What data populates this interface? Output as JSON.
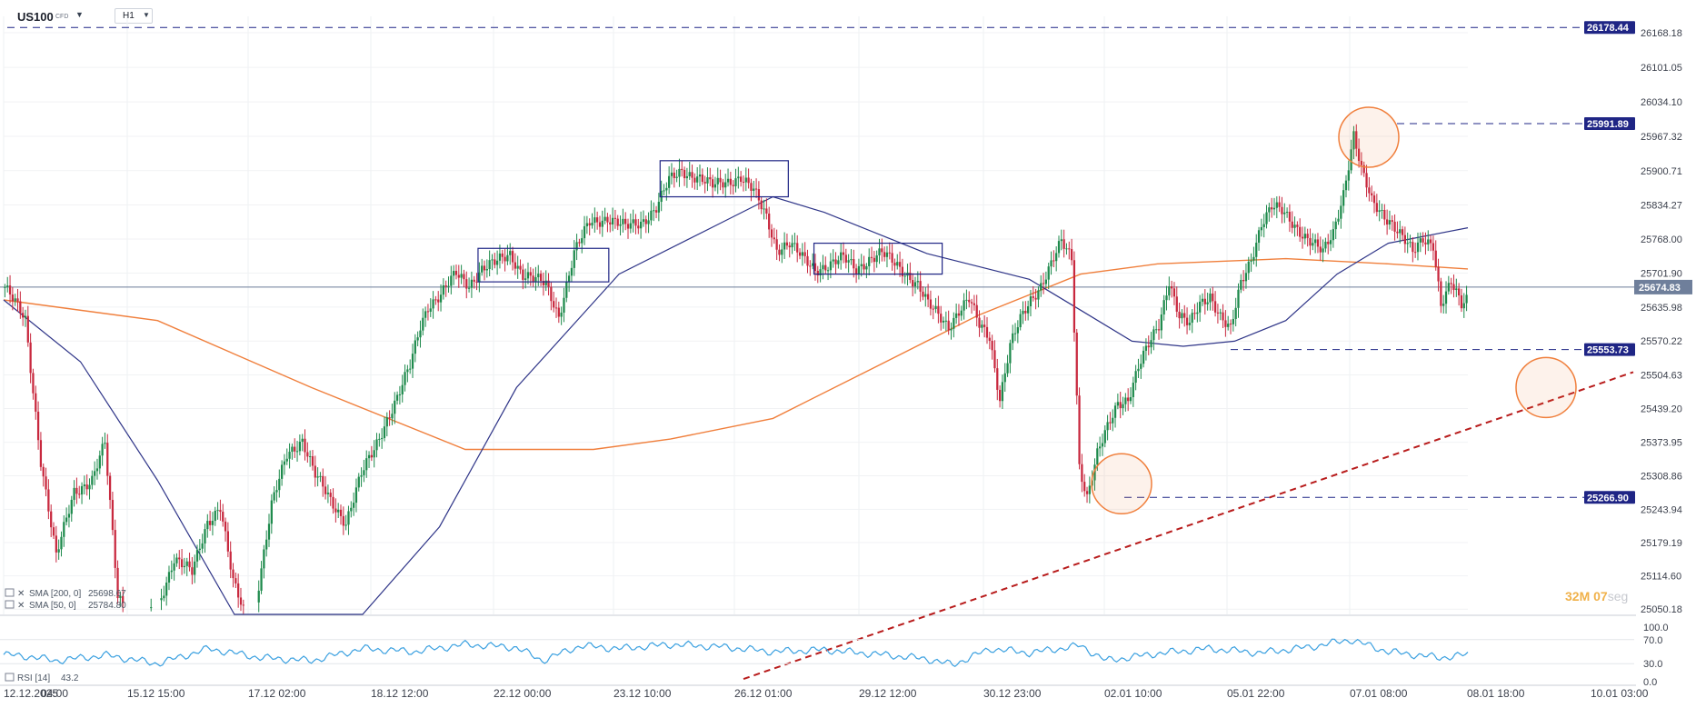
{
  "header": {
    "symbol": "US100",
    "symbol_type": "CFD",
    "timeframe": "H1"
  },
  "countdown": {
    "minutes": "32",
    "minutes_unit": "M",
    "seconds": "07",
    "seconds_unit": "seg"
  },
  "colors": {
    "bull": "#1e8a4c",
    "bear": "#c8283e",
    "sma200": "#f07f3c",
    "sma50": "#2f3588",
    "rsi": "#3aa0e0",
    "tag": "#1f2585",
    "trendline": "#b81c1c",
    "highlight": "#f07f3c"
  },
  "legend": {
    "sma200": "SMA [200, 0]",
    "sma200_value": "25698.67",
    "sma50": "SMA [50, 0]",
    "sma50_value": "25784.80",
    "rsi": "RSI [14]",
    "rsi_value": "43.2"
  },
  "price_axis": [
    "26168.18",
    "26101.05",
    "26034.10",
    "25967.32",
    "25900.71",
    "25834.27",
    "25768.00",
    "25701.90",
    "25635.98",
    "25570.22",
    "25504.63",
    "25439.20",
    "25373.95",
    "25308.86",
    "25243.94",
    "25179.19",
    "25114.60",
    "25050.18"
  ],
  "rsi_axis": [
    "100.0",
    "70.0",
    "30.0",
    "0.0"
  ],
  "time_axis": [
    "12.12.2025",
    "04:00",
    "15.12  15:00",
    "17.12  02:00",
    "18.12  12:00",
    "22.12  00:00",
    "23.12  10:00",
    "26.12  01:00",
    "29.12  12:00",
    "30.12  23:00",
    "02.01  10:00",
    "05.01  22:00",
    "07.01  08:00",
    "08.01  18:00",
    "10.01  03:00"
  ],
  "price_tags": {
    "current": "25674.83",
    "level_1": "26178.44",
    "level_2": "25991.89",
    "level_3": "25553.73",
    "level_4": "25266.90"
  },
  "chart_data": {
    "type": "candlestick",
    "symbol": "US100",
    "timeframe": "H1",
    "y_axis_range": [
      25040,
      26200
    ],
    "rsi_range": [
      0,
      100
    ],
    "current_price": 25674.83,
    "horizontal_levels": [
      26178.44,
      25991.89,
      25553.73,
      25266.9
    ],
    "trendline": {
      "from_price": 24950,
      "to_price": 25510
    },
    "highlighted_prices": [
      25991.89,
      25266.9,
      25480
    ],
    "series": [
      {
        "name": "SMA [200, 0]",
        "last_value": 25698.67
      },
      {
        "name": "SMA [50, 0]",
        "last_value": 25784.8
      },
      {
        "name": "RSI [14]",
        "last_value": 43.2
      }
    ],
    "close_path": [
      [
        0,
        25675
      ],
      [
        8,
        25610
      ],
      [
        14,
        25340
      ],
      [
        20,
        25150
      ],
      [
        27,
        25280
      ],
      [
        34,
        25300
      ],
      [
        39,
        25370
      ],
      [
        44,
        25080
      ],
      [
        52,
        25020
      ],
      [
        60,
        25060
      ],
      [
        66,
        25150
      ],
      [
        73,
        25120
      ],
      [
        79,
        25220
      ],
      [
        84,
        25250
      ],
      [
        89,
        25100
      ],
      [
        96,
        25010
      ],
      [
        104,
        25250
      ],
      [
        110,
        25350
      ],
      [
        116,
        25380
      ],
      [
        121,
        25310
      ],
      [
        127,
        25260
      ],
      [
        133,
        25220
      ],
      [
        139,
        25310
      ],
      [
        144,
        25360
      ],
      [
        149,
        25420
      ],
      [
        153,
        25460
      ],
      [
        158,
        25520
      ],
      [
        162,
        25600
      ],
      [
        165,
        25640
      ],
      [
        170,
        25660
      ],
      [
        176,
        25700
      ],
      [
        181,
        25680
      ],
      [
        186,
        25710
      ],
      [
        191,
        25720
      ],
      [
        197,
        25740
      ],
      [
        202,
        25700
      ],
      [
        206,
        25690
      ],
      [
        211,
        25680
      ],
      [
        216,
        25620
      ],
      [
        222,
        25740
      ],
      [
        228,
        25800
      ],
      [
        235,
        25810
      ],
      [
        242,
        25790
      ],
      [
        248,
        25800
      ],
      [
        254,
        25830
      ],
      [
        259,
        25880
      ],
      [
        264,
        25900
      ],
      [
        270,
        25890
      ],
      [
        276,
        25870
      ],
      [
        282,
        25880
      ],
      [
        287,
        25890
      ],
      [
        292,
        25860
      ],
      [
        297,
        25810
      ],
      [
        301,
        25750
      ],
      [
        306,
        25760
      ],
      [
        311,
        25730
      ],
      [
        316,
        25710
      ],
      [
        322,
        25720
      ],
      [
        327,
        25730
      ],
      [
        332,
        25710
      ],
      [
        337,
        25730
      ],
      [
        342,
        25740
      ],
      [
        347,
        25720
      ],
      [
        352,
        25700
      ],
      [
        356,
        25680
      ],
      [
        360,
        25640
      ],
      [
        364,
        25620
      ],
      [
        368,
        25600
      ],
      [
        372,
        25630
      ],
      [
        376,
        25650
      ],
      [
        380,
        25600
      ],
      [
        384,
        25580
      ],
      [
        388,
        25460
      ],
      [
        392,
        25560
      ],
      [
        396,
        25610
      ],
      [
        400,
        25650
      ],
      [
        404,
        25680
      ],
      [
        408,
        25720
      ],
      [
        412,
        25760
      ],
      [
        416,
        25730
      ],
      [
        419,
        25330
      ],
      [
        422,
        25270
      ],
      [
        426,
        25350
      ],
      [
        430,
        25400
      ],
      [
        434,
        25450
      ],
      [
        438,
        25460
      ],
      [
        442,
        25520
      ],
      [
        446,
        25560
      ],
      [
        450,
        25600
      ],
      [
        454,
        25690
      ],
      [
        458,
        25620
      ],
      [
        462,
        25600
      ],
      [
        466,
        25640
      ],
      [
        470,
        25660
      ],
      [
        474,
        25620
      ],
      [
        478,
        25590
      ],
      [
        482,
        25680
      ],
      [
        486,
        25730
      ],
      [
        490,
        25800
      ],
      [
        494,
        25830
      ],
      [
        498,
        25820
      ],
      [
        502,
        25800
      ],
      [
        506,
        25780
      ],
      [
        510,
        25760
      ],
      [
        514,
        25740
      ],
      [
        518,
        25780
      ],
      [
        522,
        25860
      ],
      [
        526,
        25970
      ],
      [
        529,
        25900
      ],
      [
        533,
        25840
      ],
      [
        537,
        25820
      ],
      [
        541,
        25800
      ],
      [
        545,
        25770
      ],
      [
        549,
        25740
      ],
      [
        553,
        25770
      ],
      [
        557,
        25760
      ],
      [
        560,
        25640
      ],
      [
        564,
        25680
      ],
      [
        568,
        25640
      ],
      [
        571,
        25660
      ]
    ],
    "sma200_path": [
      [
        0,
        25650
      ],
      [
        60,
        25610
      ],
      [
        120,
        25480
      ],
      [
        180,
        25360
      ],
      [
        230,
        25360
      ],
      [
        260,
        25380
      ],
      [
        300,
        25420
      ],
      [
        340,
        25520
      ],
      [
        380,
        25620
      ],
      [
        420,
        25700
      ],
      [
        450,
        25720
      ],
      [
        500,
        25730
      ],
      [
        540,
        25720
      ],
      [
        571,
        25710
      ]
    ],
    "sma50_path": [
      [
        0,
        25650
      ],
      [
        30,
        25530
      ],
      [
        60,
        25300
      ],
      [
        90,
        25040
      ],
      [
        140,
        25040
      ],
      [
        170,
        25210
      ],
      [
        200,
        25480
      ],
      [
        240,
        25700
      ],
      [
        280,
        25800
      ],
      [
        300,
        25850
      ],
      [
        320,
        25820
      ],
      [
        360,
        25740
      ],
      [
        400,
        25690
      ],
      [
        420,
        25630
      ],
      [
        440,
        25570
      ],
      [
        460,
        25560
      ],
      [
        480,
        25570
      ],
      [
        500,
        25610
      ],
      [
        520,
        25700
      ],
      [
        540,
        25760
      ],
      [
        571,
        25790
      ]
    ],
    "rsi_path": [
      [
        0,
        45
      ],
      [
        10,
        42
      ],
      [
        20,
        35
      ],
      [
        40,
        44
      ],
      [
        60,
        30
      ],
      [
        80,
        55
      ],
      [
        100,
        40
      ],
      [
        120,
        35
      ],
      [
        140,
        55
      ],
      [
        160,
        50
      ],
      [
        180,
        62
      ],
      [
        200,
        57
      ],
      [
        210,
        35
      ],
      [
        225,
        60
      ],
      [
        240,
        55
      ],
      [
        260,
        62
      ],
      [
        280,
        58
      ],
      [
        300,
        50
      ],
      [
        320,
        53
      ],
      [
        340,
        46
      ],
      [
        360,
        38
      ],
      [
        370,
        28
      ],
      [
        385,
        55
      ],
      [
        400,
        48
      ],
      [
        420,
        60
      ],
      [
        430,
        35
      ],
      [
        450,
        47
      ],
      [
        470,
        55
      ],
      [
        490,
        48
      ],
      [
        510,
        58
      ],
      [
        525,
        70
      ],
      [
        540,
        50
      ],
      [
        560,
        40
      ],
      [
        571,
        45
      ]
    ]
  }
}
